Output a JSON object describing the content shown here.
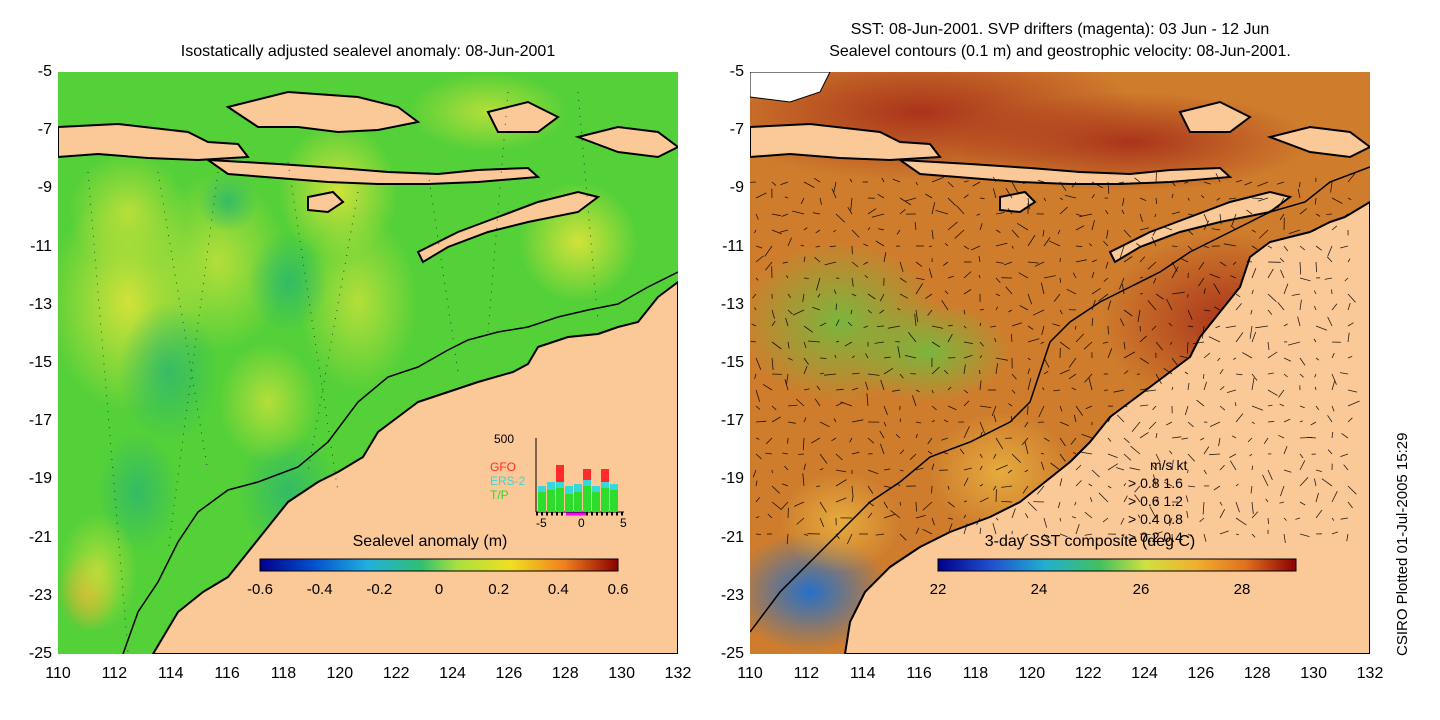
{
  "left_panel": {
    "title": "Isostatically adjusted sealevel anomaly: 08-Jun-2001",
    "colorbar": {
      "title": "Sealevel anomaly (m)",
      "ticks": [
        "-0.6",
        "-0.4",
        "-0.2",
        "0",
        "0.2",
        "0.4",
        "0.6"
      ]
    },
    "inset": {
      "ymax_label": "500",
      "legend": [
        {
          "label": "GFO",
          "color": "#ff2a2a"
        },
        {
          "label": "ERS-2",
          "color": "#38d8d8"
        },
        {
          "label": "T/P",
          "color": "#2ddc2d"
        }
      ],
      "xticks": [
        "-5",
        "0",
        "5"
      ]
    }
  },
  "right_panel": {
    "title_line1": "SST: 08-Jun-2001. SVP drifters (magenta): 03 Jun - 12 Jun",
    "title_line2": "Sealevel contours (0.1 m) and geostrophic velocity: 08-Jun-2001.",
    "colorbar": {
      "title": "3-day SST composite (deg C)",
      "ticks": [
        "22",
        "24",
        "26",
        "28"
      ]
    },
    "velocity_legend": {
      "header": "m/s  kt",
      "rows": [
        "0.8  1.6",
        "0.6  1.2",
        "0.4  0.8",
        "0.2  0.4"
      ]
    }
  },
  "axes": {
    "y_ticks": [
      "-5",
      "-7",
      "-9",
      "-11",
      "-13",
      "-15",
      "-17",
      "-19",
      "-21",
      "-23",
      "-25"
    ],
    "x_ticks": [
      "110",
      "112",
      "114",
      "116",
      "118",
      "120",
      "122",
      "124",
      "126",
      "128",
      "130",
      "132"
    ]
  },
  "side_caption": "CSIRO Plotted 01-Jul-2005 15:29",
  "colors": {
    "land": "#fbc898",
    "ocean_green": "#4fd234",
    "sst_orange": "#cf7d2d",
    "sst_hot": "#b3391a"
  }
}
